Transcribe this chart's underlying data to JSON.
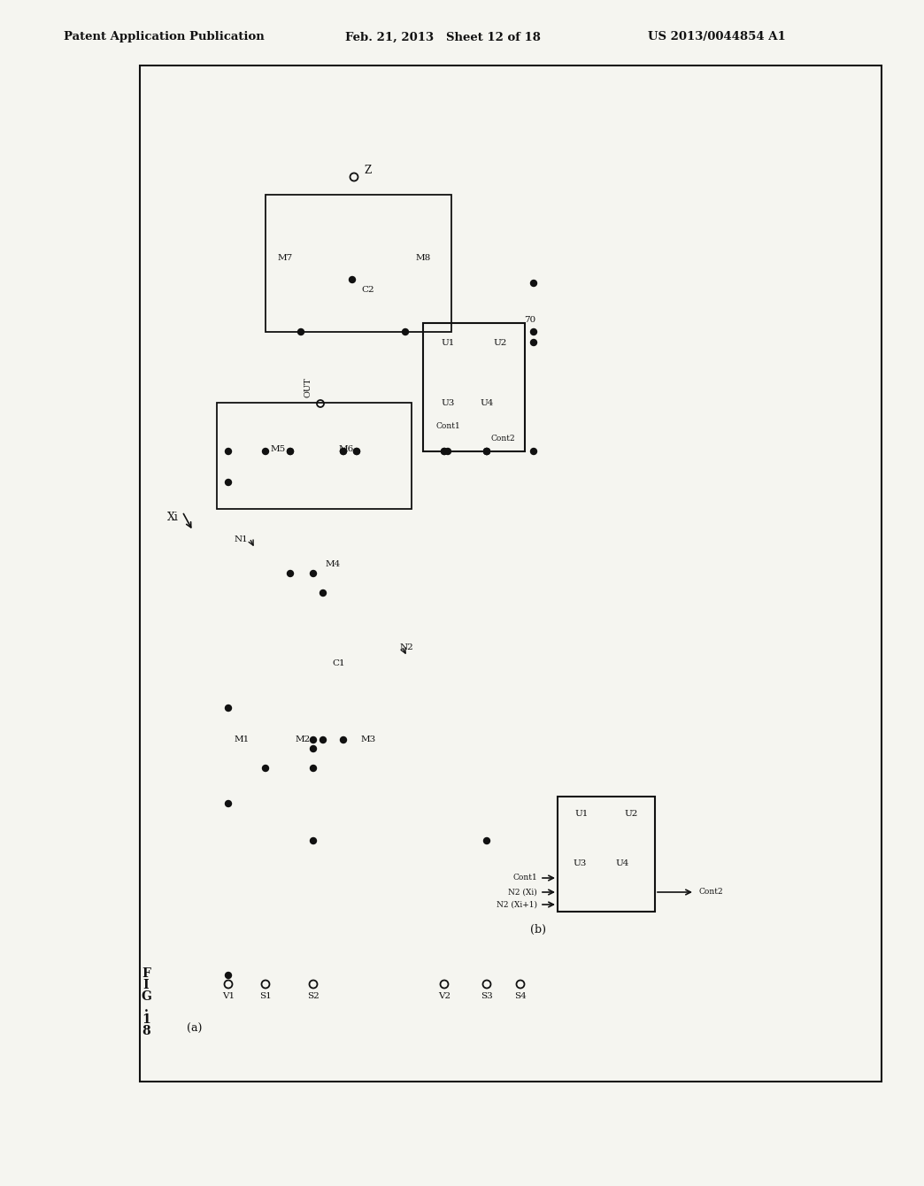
{
  "header_left": "Patent Application Publication",
  "header_mid": "Feb. 21, 2013   Sheet 12 of 18",
  "header_right": "US 2013/0044854 A1",
  "fig_label": "FIG. 18",
  "background": "#f5f5f0"
}
